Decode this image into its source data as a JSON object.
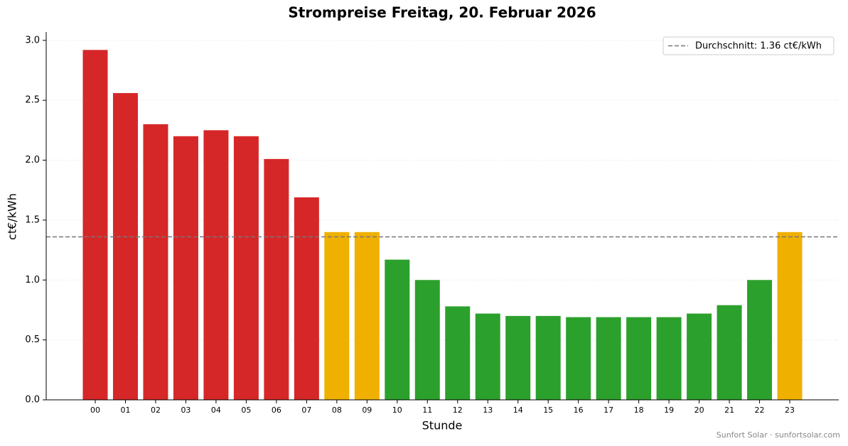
{
  "chart_data": {
    "type": "bar",
    "title": "Strompreise Freitag, 20. Februar 2026",
    "x_label": "Stunde",
    "y_label": "ct€/kWh",
    "categories": [
      "00",
      "01",
      "02",
      "03",
      "04",
      "05",
      "06",
      "07",
      "08",
      "09",
      "10",
      "11",
      "12",
      "13",
      "14",
      "15",
      "16",
      "17",
      "18",
      "19",
      "20",
      "21",
      "22",
      "23"
    ],
    "values": [
      2.92,
      2.56,
      2.3,
      2.2,
      2.25,
      2.2,
      2.01,
      1.69,
      1.4,
      1.4,
      1.17,
      1.0,
      0.78,
      0.72,
      0.7,
      0.7,
      0.69,
      0.69,
      0.69,
      0.69,
      0.72,
      0.79,
      1.0,
      1.4
    ],
    "colors": [
      "#d62728",
      "#d62728",
      "#d62728",
      "#d62728",
      "#d62728",
      "#d62728",
      "#d62728",
      "#d62728",
      "#f0b000",
      "#f0b000",
      "#2ca02c",
      "#2ca02c",
      "#2ca02c",
      "#2ca02c",
      "#2ca02c",
      "#2ca02c",
      "#2ca02c",
      "#2ca02c",
      "#2ca02c",
      "#2ca02c",
      "#2ca02c",
      "#2ca02c",
      "#2ca02c",
      "#f0b000"
    ],
    "ylim": [
      0,
      3.07
    ],
    "yticks": [
      {
        "value": 0,
        "label": "0.0"
      },
      {
        "value": 0.5,
        "label": "0.5"
      },
      {
        "value": 1,
        "label": "1.0"
      },
      {
        "value": 1.5,
        "label": "1.5"
      },
      {
        "value": 2,
        "label": "2.0"
      },
      {
        "value": 2.5,
        "label": "2.5"
      },
      {
        "value": 3,
        "label": "3.0"
      }
    ],
    "grid": true,
    "average": 1.36,
    "average_label": "Durchschnitt: 1.36 ct€/kWh",
    "legend_position": "upper right",
    "footer": "Sunfort Solar · sunfortsolar.com"
  }
}
